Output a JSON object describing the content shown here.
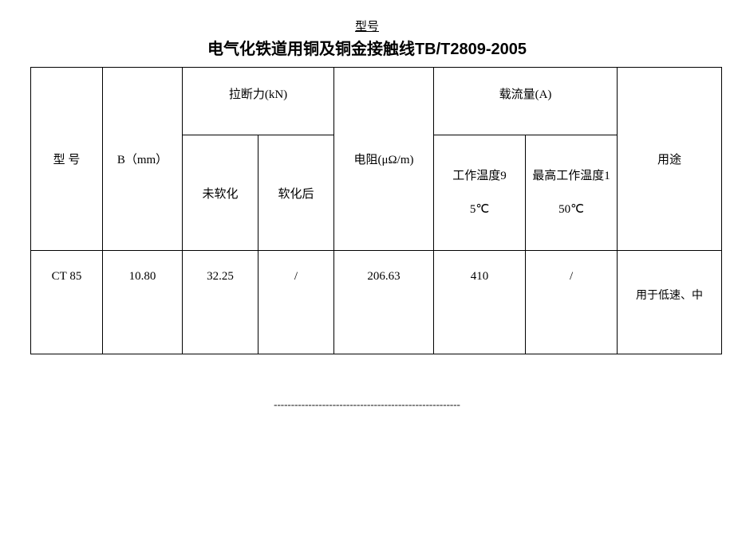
{
  "header_label": "型号",
  "title": "电气化铁道用铜及铜金接触线TB/T2809-2005",
  "headers": {
    "model": "型 号",
    "b": "B（mm）",
    "tensile_group": "拉断力(kN)",
    "tensile_un": "未软化",
    "tensile_soft": "软化后",
    "resistance": "电阻(μΩ/m)",
    "current_group": "载流量(A)",
    "current_work_line1": "工作温度9",
    "current_work_line2": "5℃",
    "current_max_line1": "最高工作温度1",
    "current_max_line2": "50℃",
    "use": "用途"
  },
  "row": {
    "model": "CT 85",
    "b": "10.80",
    "tensile_un": "32.25",
    "tensile_soft": "/",
    "resistance": "206.63",
    "current_work": "410",
    "current_max": "/",
    "use": "用于低速、中"
  },
  "footer": "------------------------------------------------------"
}
